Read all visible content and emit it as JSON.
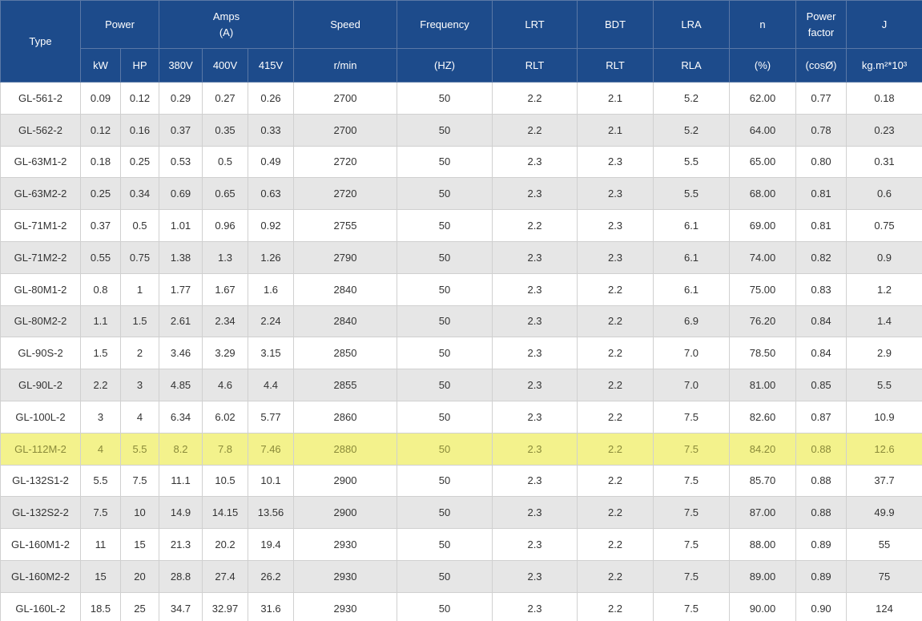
{
  "header": {
    "groups": [
      "Type",
      "Power",
      "Amps\n(A)",
      "Speed",
      "Frequency",
      "LRT",
      "BDT",
      "LRA",
      "n",
      "Power\nfactor",
      "J"
    ],
    "units": [
      "kW",
      "HP",
      "380V",
      "400V",
      "415V",
      "r/min",
      "(HZ)",
      "RLT",
      "RLT",
      "RLA",
      "(%)",
      "(cosØ)",
      "kg.m²*10³"
    ]
  },
  "table": {
    "rows": [
      [
        "GL-561-2",
        "0.09",
        "0.12",
        "0.29",
        "0.27",
        "0.26",
        "2700",
        "50",
        "2.2",
        "2.1",
        "5.2",
        "62.00",
        "0.77",
        "0.18"
      ],
      [
        "GL-562-2",
        "0.12",
        "0.16",
        "0.37",
        "0.35",
        "0.33",
        "2700",
        "50",
        "2.2",
        "2.1",
        "5.2",
        "64.00",
        "0.78",
        "0.23"
      ],
      [
        "GL-63M1-2",
        "0.18",
        "0.25",
        "0.53",
        "0.5",
        "0.49",
        "2720",
        "50",
        "2.3",
        "2.3",
        "5.5",
        "65.00",
        "0.80",
        "0.31"
      ],
      [
        "GL-63M2-2",
        "0.25",
        "0.34",
        "0.69",
        "0.65",
        "0.63",
        "2720",
        "50",
        "2.3",
        "2.3",
        "5.5",
        "68.00",
        "0.81",
        "0.6"
      ],
      [
        "GL-71M1-2",
        "0.37",
        "0.5",
        "1.01",
        "0.96",
        "0.92",
        "2755",
        "50",
        "2.2",
        "2.3",
        "6.1",
        "69.00",
        "0.81",
        "0.75"
      ],
      [
        "GL-71M2-2",
        "0.55",
        "0.75",
        "1.38",
        "1.3",
        "1.26",
        "2790",
        "50",
        "2.3",
        "2.3",
        "6.1",
        "74.00",
        "0.82",
        "0.9"
      ],
      [
        "GL-80M1-2",
        "0.8",
        "1",
        "1.77",
        "1.67",
        "1.6",
        "2840",
        "50",
        "2.3",
        "2.2",
        "6.1",
        "75.00",
        "0.83",
        "1.2"
      ],
      [
        "GL-80M2-2",
        "1.1",
        "1.5",
        "2.61",
        "2.34",
        "2.24",
        "2840",
        "50",
        "2.3",
        "2.2",
        "6.9",
        "76.20",
        "0.84",
        "1.4"
      ],
      [
        "GL-90S-2",
        "1.5",
        "2",
        "3.46",
        "3.29",
        "3.15",
        "2850",
        "50",
        "2.3",
        "2.2",
        "7.0",
        "78.50",
        "0.84",
        "2.9"
      ],
      [
        "GL-90L-2",
        "2.2",
        "3",
        "4.85",
        "4.6",
        "4.4",
        "2855",
        "50",
        "2.3",
        "2.2",
        "7.0",
        "81.00",
        "0.85",
        "5.5"
      ],
      [
        "GL-100L-2",
        "3",
        "4",
        "6.34",
        "6.02",
        "5.77",
        "2860",
        "50",
        "2.3",
        "2.2",
        "7.5",
        "82.60",
        "0.87",
        "10.9"
      ],
      [
        "GL-112M-2",
        "4",
        "5.5",
        "8.2",
        "7.8",
        "7.46",
        "2880",
        "50",
        "2.3",
        "2.2",
        "7.5",
        "84.20",
        "0.88",
        "12.6"
      ],
      [
        "GL-132S1-2",
        "5.5",
        "7.5",
        "11.1",
        "10.5",
        "10.1",
        "2900",
        "50",
        "2.3",
        "2.2",
        "7.5",
        "85.70",
        "0.88",
        "37.7"
      ],
      [
        "GL-132S2-2",
        "7.5",
        "10",
        "14.9",
        "14.15",
        "13.56",
        "2900",
        "50",
        "2.3",
        "2.2",
        "7.5",
        "87.00",
        "0.88",
        "49.9"
      ],
      [
        "GL-160M1-2",
        "11",
        "15",
        "21.3",
        "20.2",
        "19.4",
        "2930",
        "50",
        "2.3",
        "2.2",
        "7.5",
        "88.00",
        "0.89",
        "55"
      ],
      [
        "GL-160M2-2",
        "15",
        "20",
        "28.8",
        "27.4",
        "26.2",
        "2930",
        "50",
        "2.3",
        "2.2",
        "7.5",
        "89.00",
        "0.89",
        "75"
      ],
      [
        "GL-160L-2",
        "18.5",
        "25",
        "34.7",
        "32.97",
        "31.6",
        "2930",
        "50",
        "2.3",
        "2.2",
        "7.5",
        "90.00",
        "0.90",
        "124"
      ]
    ]
  }
}
